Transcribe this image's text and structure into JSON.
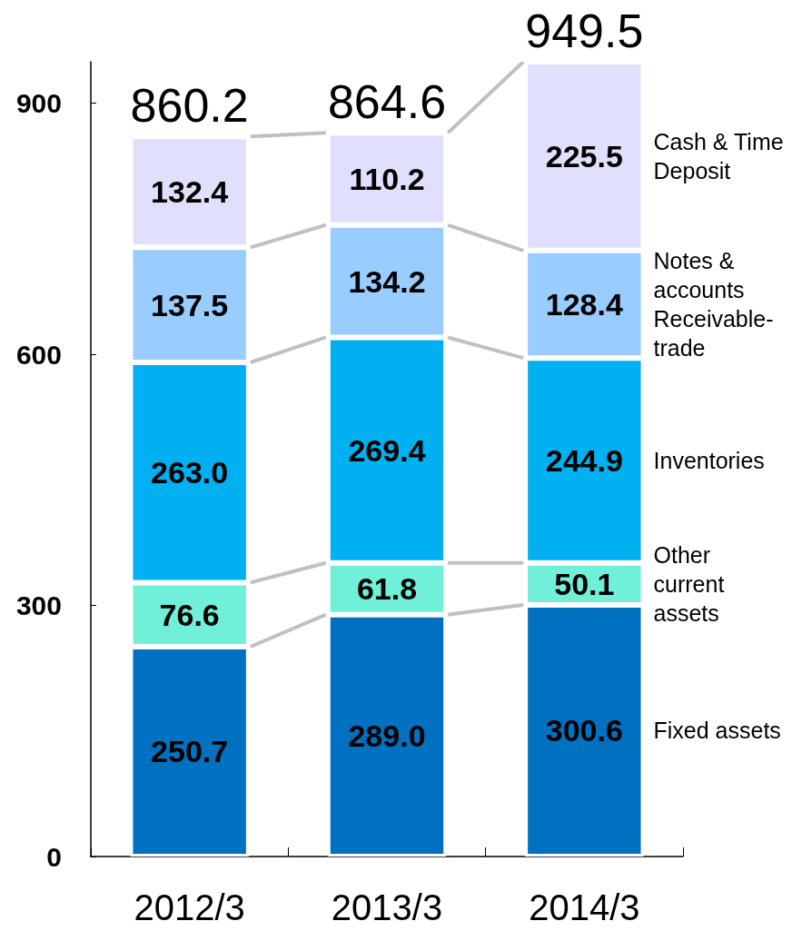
{
  "chart_data": {
    "type": "bar",
    "stacked": true,
    "categories": [
      "2012/3",
      "2013/3",
      "2014/3"
    ],
    "series": [
      {
        "name": "Fixed assets",
        "color": "#0070c0",
        "values": [
          250.7,
          289.0,
          300.6
        ],
        "value_labels": [
          "250.7",
          "289.0",
          "300.6"
        ]
      },
      {
        "name": "Other\ncurrent\nassets",
        "color": "#70f0d8",
        "values": [
          76.6,
          61.8,
          50.1
        ],
        "value_labels": [
          "76.6",
          "61.8",
          "50.1"
        ]
      },
      {
        "name": "Inventories",
        "color": "#00b0f0",
        "values": [
          263.0,
          269.4,
          244.9
        ],
        "value_labels": [
          "263.0",
          "269.4",
          "244.9"
        ]
      },
      {
        "name": "Notes &\naccounts\nReceivable-\ntrade",
        "color": "#99ccff",
        "values": [
          137.5,
          134.2,
          128.4
        ],
        "value_labels": [
          "137.5",
          "134.2",
          "128.4"
        ]
      },
      {
        "name": "Cash & Time\nDeposit",
        "color": "#e0e0fc",
        "values": [
          132.4,
          110.2,
          225.5
        ],
        "value_labels": [
          "132.4",
          "110.2",
          "225.5"
        ]
      }
    ],
    "totals": [
      "860.2",
      "864.6",
      "949.5"
    ],
    "ylim": [
      0,
      949.5
    ],
    "yticks": [
      0,
      300,
      600,
      900
    ]
  }
}
